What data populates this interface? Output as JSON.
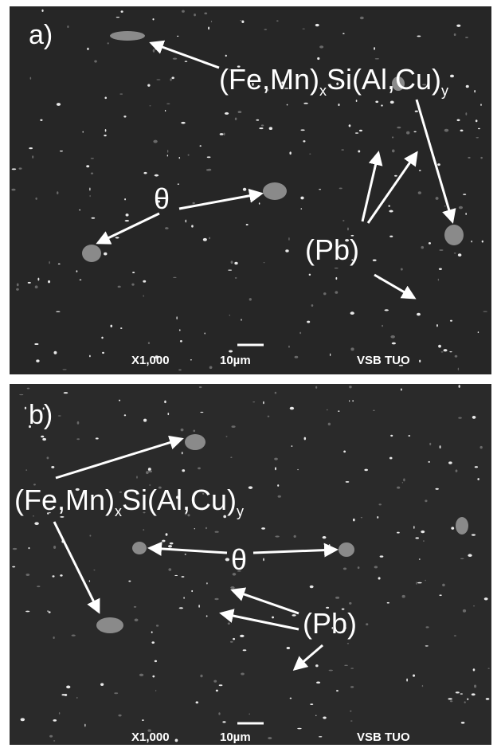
{
  "panels": [
    {
      "label": "a)",
      "phase1": {
        "main": "(Fe,Mn)",
        "sub1": "x",
        "mid": "Si(Al,Cu)",
        "sub2": "y"
      },
      "phase2": "θ",
      "phase3": "(Pb)",
      "magnification": "X1,000",
      "scale": "10µm",
      "lab": "VSB TUO"
    },
    {
      "label": "b)",
      "phase1": {
        "main": "(Fe,Mn)",
        "sub1": "x",
        "mid": "Si(Al,Cu)",
        "sub2": "y"
      },
      "phase2": "θ",
      "phase3": "(Pb)",
      "magnification": "X1,000",
      "scale": "10µm",
      "lab": "VSB TUO"
    }
  ]
}
